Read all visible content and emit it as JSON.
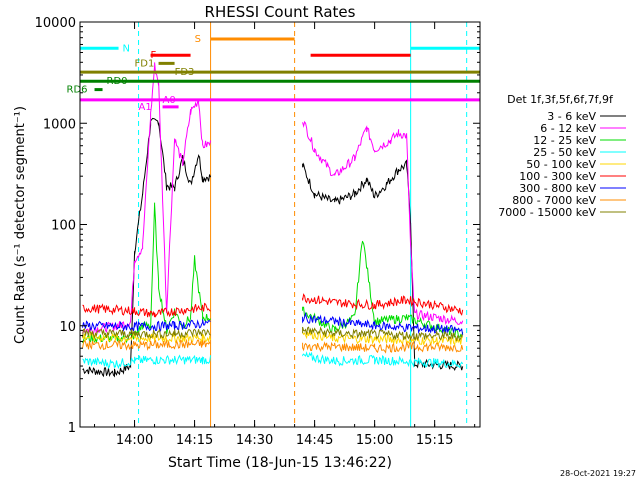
{
  "chart_data": {
    "type": "line",
    "title": "RHESSI Count Rates",
    "xlabel": "Start Time (18-Jun-15 13:46:22)",
    "ylabel": "Count Rate (s⁻¹ detector segment⁻¹)",
    "y_scale": "log",
    "ylim": [
      1,
      10000
    ],
    "xlim": [
      "13:46:22",
      "15:26:20"
    ],
    "x_ticks": [
      "14:00",
      "14:15",
      "14:30",
      "14:45",
      "15:00",
      "15:15"
    ],
    "y_ticks": [
      "1",
      "10",
      "100",
      "1000",
      "10000"
    ],
    "timestamp": "28-Oct-2021 19:27",
    "legend": {
      "title": "Det 1f,3f,5f,6f,7f,9f",
      "placement": "right",
      "entries": [
        {
          "label": "3 - 6 keV",
          "color": "#000000"
        },
        {
          "label": "6 - 12 keV",
          "color": "#ff00ff"
        },
        {
          "label": "12 - 25 keV",
          "color": "#00dd00"
        },
        {
          "label": "25 - 50 keV",
          "color": "#00ffff"
        },
        {
          "label": "50 - 100 keV",
          "color": "#ffd700"
        },
        {
          "label": "100 - 300 keV",
          "color": "#ff0000"
        },
        {
          "label": "300 - 800 keV",
          "color": "#0000ff"
        },
        {
          "label": "800 - 7000 keV",
          "color": "#ff8c00"
        },
        {
          "label": "7000 - 15000 keV",
          "color": "#808000"
        }
      ]
    },
    "gap": [
      "14:19",
      "14:42"
    ],
    "series": [
      {
        "name": "3 - 6 keV",
        "color": "#000000",
        "points": [
          [
            "13:47",
            3.7
          ],
          [
            "13:55",
            3.4
          ],
          [
            "13:59",
            4.0
          ],
          [
            "14:00",
            55
          ],
          [
            "14:02",
            200
          ],
          [
            "14:04",
            1000
          ],
          [
            "14:06",
            1050
          ],
          [
            "14:08",
            240
          ],
          [
            "14:10",
            230
          ],
          [
            "14:12",
            450
          ],
          [
            "14:14",
            250
          ],
          [
            "14:16",
            500
          ],
          [
            "14:17",
            290
          ],
          [
            "14:42",
            380
          ],
          [
            "14:45",
            200
          ],
          [
            "14:50",
            165
          ],
          [
            "14:55",
            200
          ],
          [
            "14:58",
            280
          ],
          [
            "15:00",
            190
          ],
          [
            "15:03",
            250
          ],
          [
            "15:06",
            350
          ],
          [
            "15:08",
            390
          ],
          [
            "15:09",
            110
          ],
          [
            "15:10",
            4.2
          ],
          [
            "15:22",
            4.0
          ]
        ]
      },
      {
        "name": "6 - 12 keV",
        "color": "#ff00ff",
        "points": [
          [
            "13:47",
            9
          ],
          [
            "13:56",
            10
          ],
          [
            "13:59",
            11
          ],
          [
            "14:00",
            45
          ],
          [
            "14:02",
            60
          ],
          [
            "14:04",
            1200
          ],
          [
            "14:05",
            3700
          ],
          [
            "14:06",
            2500
          ],
          [
            "14:08",
            14
          ],
          [
            "14:10",
            700
          ],
          [
            "14:12",
            400
          ],
          [
            "14:14",
            1300
          ],
          [
            "14:16",
            1700
          ],
          [
            "14:17",
            600
          ],
          [
            "14:42",
            1100
          ],
          [
            "14:45",
            550
          ],
          [
            "14:50",
            300
          ],
          [
            "14:55",
            450
          ],
          [
            "14:58",
            900
          ],
          [
            "15:00",
            550
          ],
          [
            "15:04",
            680
          ],
          [
            "15:06",
            800
          ],
          [
            "15:08",
            750
          ],
          [
            "15:09",
            60
          ],
          [
            "15:10",
            13
          ],
          [
            "15:22",
            11
          ]
        ]
      },
      {
        "name": "12 - 25 keV",
        "color": "#00dd00",
        "points": [
          [
            "13:47",
            7.5
          ],
          [
            "13:58",
            7.5
          ],
          [
            "14:00",
            8
          ],
          [
            "14:02",
            10
          ],
          [
            "14:04",
            10
          ],
          [
            "14:05",
            150
          ],
          [
            "14:06",
            25
          ],
          [
            "14:08",
            9
          ],
          [
            "14:10",
            14
          ],
          [
            "14:12",
            10
          ],
          [
            "14:14",
            12
          ],
          [
            "14:15",
            45
          ],
          [
            "14:17",
            12
          ],
          [
            "14:42",
            14
          ],
          [
            "14:50",
            9
          ],
          [
            "14:55",
            12
          ],
          [
            "14:57",
            75
          ],
          [
            "15:00",
            11
          ],
          [
            "15:08",
            12
          ],
          [
            "15:22",
            8
          ]
        ]
      },
      {
        "name": "25 - 50 keV",
        "color": "#00ffff",
        "points": [
          [
            "13:47",
            4.5
          ],
          [
            "13:55",
            4.2
          ],
          [
            "14:00",
            4.5
          ],
          [
            "14:05",
            4.6
          ],
          [
            "14:10",
            4.6
          ],
          [
            "14:17",
            4.6
          ],
          [
            "14:42",
            5.0
          ],
          [
            "14:50",
            4.5
          ],
          [
            "15:00",
            4.6
          ],
          [
            "15:10",
            4.4
          ],
          [
            "15:22",
            4.2
          ]
        ]
      },
      {
        "name": "50 - 100 keV",
        "color": "#ffd700",
        "points": [
          [
            "13:47",
            7.8
          ],
          [
            "14:00",
            7.5
          ],
          [
            "14:10",
            7.6
          ],
          [
            "14:17",
            7.5
          ],
          [
            "14:42",
            8.6
          ],
          [
            "14:50",
            7.5
          ],
          [
            "15:00",
            7.4
          ],
          [
            "15:10",
            7.2
          ],
          [
            "15:22",
            7.0
          ]
        ]
      },
      {
        "name": "100 - 300 keV",
        "color": "#ff0000",
        "points": [
          [
            "13:47",
            15
          ],
          [
            "14:00",
            14
          ],
          [
            "14:05",
            13
          ],
          [
            "14:10",
            14
          ],
          [
            "14:17",
            15
          ],
          [
            "14:42",
            19
          ],
          [
            "14:50",
            17
          ],
          [
            "15:00",
            16
          ],
          [
            "15:08",
            18
          ],
          [
            "15:15",
            16
          ],
          [
            "15:22",
            14
          ]
        ]
      },
      {
        "name": "300 - 800 keV",
        "color": "#0000ff",
        "points": [
          [
            "13:47",
            10
          ],
          [
            "14:00",
            9.8
          ],
          [
            "14:10",
            10
          ],
          [
            "14:17",
            10.5
          ],
          [
            "14:42",
            12
          ],
          [
            "14:50",
            11
          ],
          [
            "15:00",
            10
          ],
          [
            "15:10",
            9.5
          ],
          [
            "15:22",
            9
          ]
        ]
      },
      {
        "name": "800 - 7000 keV",
        "color": "#ff8c00",
        "points": [
          [
            "13:47",
            6.5
          ],
          [
            "14:00",
            6.4
          ],
          [
            "14:10",
            6.5
          ],
          [
            "14:17",
            6.6
          ],
          [
            "14:42",
            6.3
          ],
          [
            "14:50",
            6.2
          ],
          [
            "15:00",
            6.0
          ],
          [
            "15:10",
            6.2
          ],
          [
            "15:22",
            6.1
          ]
        ]
      },
      {
        "name": "7000 - 15000 keV",
        "color": "#808000",
        "points": [
          [
            "13:47",
            8.5
          ],
          [
            "14:00",
            8.3
          ],
          [
            "14:10",
            8.4
          ],
          [
            "14:17",
            8.6
          ],
          [
            "14:42",
            9.0
          ],
          [
            "14:50",
            8.4
          ],
          [
            "15:00",
            8.2
          ],
          [
            "15:10",
            8.0
          ],
          [
            "15:22",
            7.8
          ]
        ]
      }
    ],
    "flag_bars": [
      {
        "label": "N",
        "color": "#00ffff",
        "y": 5500,
        "segments": [
          [
            "13:46:22",
            "13:56"
          ],
          [
            "15:09",
            "15:26:20"
          ]
        ],
        "label_at": "13:57"
      },
      {
        "label": "S",
        "color": "#ff8c00",
        "y": 6800,
        "segments": [
          [
            "14:19",
            "14:40"
          ]
        ],
        "label_at": "14:15"
      },
      {
        "label": "F",
        "color": "#ff0000",
        "y": 4700,
        "segments": [
          [
            "14:04",
            "14:14"
          ],
          [
            "14:44",
            "15:09"
          ]
        ],
        "label_at": "13:64"
      },
      {
        "label": "FD1",
        "color": "#808000",
        "y": 3900,
        "segments": [
          [
            "14:06",
            "14:10"
          ]
        ],
        "label_at": "13:60"
      },
      {
        "label": "FD3",
        "color": "#808000",
        "y": 3200,
        "segments": [
          [
            "13:46:22",
            "15:26:20"
          ]
        ],
        "label_at": "14:10"
      },
      {
        "label": "RD0",
        "color": "#008000",
        "y": 2600,
        "segments": [
          [
            "13:46:22",
            "15:26:20"
          ]
        ],
        "label_at": "13:53"
      },
      {
        "label": "RD6",
        "color": "#008000",
        "y": 2150,
        "segments": [
          [
            "13:50",
            "13:52"
          ]
        ],
        "label_at": "13:43"
      },
      {
        "label": "A0",
        "color": "#ff00ff",
        "y": 1700,
        "segments": [
          [
            "13:46:22",
            "15:26:20"
          ]
        ],
        "label_at": "14:07"
      },
      {
        "label": "A1",
        "color": "#ff00ff",
        "y": 1450,
        "segments": [
          [
            "14:07",
            "14:11"
          ]
        ],
        "label_at": "14:01"
      }
    ],
    "vlines": [
      {
        "t": "13:46:22",
        "color": "#00ffff",
        "style": "solid"
      },
      {
        "t": "13:61",
        "color": "#00ffff",
        "style": "dashed"
      },
      {
        "t": "14:19",
        "color": "#ff8c00",
        "style": "solid"
      },
      {
        "t": "14:40",
        "color": "#ff8c00",
        "style": "dashed"
      },
      {
        "t": "15:09",
        "color": "#00ffff",
        "style": "solid"
      },
      {
        "t": "15:23",
        "color": "#00ffff",
        "style": "dashed"
      }
    ]
  }
}
